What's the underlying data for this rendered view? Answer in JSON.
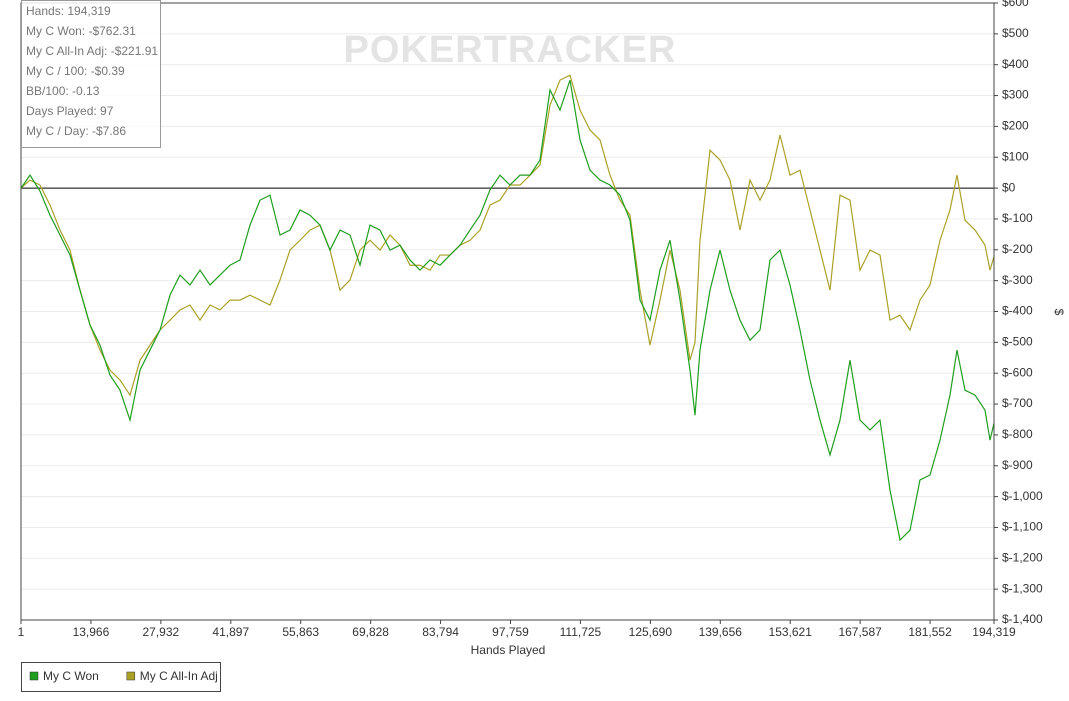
{
  "chart_data": {
    "type": "line",
    "watermark": "POKERTRACKER",
    "stats": [
      "Hands: 194,319",
      "My C Won: -$762.31",
      "My C All-In Adj: -$221.91",
      "My C / 100: -$0.39",
      "BB/100: -0.13",
      "Days Played: 97",
      "My C / Day: -$7.86"
    ],
    "xlabel": "Hands Played",
    "ylabel": "$",
    "legend": "bottom-left",
    "grid": true,
    "xlim": [
      1,
      194319
    ],
    "xticks": [
      1,
      {
        "value": 13966,
        "label": "13,966"
      },
      {
        "value": 27932,
        "label": "27,932"
      },
      {
        "value": 41897,
        "label": "41,897"
      },
      {
        "value": 55863,
        "label": "55,863"
      },
      {
        "value": 69828,
        "label": "69,828"
      },
      {
        "value": 83794,
        "label": "83,794"
      },
      {
        "value": 97759,
        "label": "97,759"
      },
      {
        "value": 111725,
        "label": "111,725"
      },
      {
        "value": 125690,
        "label": "125,690"
      },
      {
        "value": 139656,
        "label": "139,656"
      },
      {
        "value": 153621,
        "label": "153,621"
      },
      {
        "value": 167587,
        "label": "167,587"
      },
      {
        "value": 181552,
        "label": "181,552"
      },
      {
        "value": 194319,
        "label": "194,319"
      }
    ],
    "ylim": [
      -1400,
      600
    ],
    "yticks": [
      {
        "value": 600,
        "label": "$600"
      },
      {
        "value": 500,
        "label": "$500"
      },
      {
        "value": 400,
        "label": "$400"
      },
      {
        "value": 300,
        "label": "$300"
      },
      {
        "value": 200,
        "label": "$200"
      },
      {
        "value": 100,
        "label": "$100"
      },
      {
        "value": 0,
        "label": "$0"
      },
      {
        "value": -100,
        "label": "$-100"
      },
      {
        "value": -200,
        "label": "$-200"
      },
      {
        "value": -300,
        "label": "$-300"
      },
      {
        "value": -400,
        "label": "$-400"
      },
      {
        "value": -500,
        "label": "$-500"
      },
      {
        "value": -600,
        "label": "$-600"
      },
      {
        "value": -700,
        "label": "$-700"
      },
      {
        "value": -800,
        "label": "$-800"
      },
      {
        "value": -900,
        "label": "$-900"
      },
      {
        "value": -1000,
        "label": "$-1,000"
      },
      {
        "value": -1100,
        "label": "$-1,100"
      },
      {
        "value": -1200,
        "label": "$-1,200"
      },
      {
        "value": -1300,
        "label": "$-1,300"
      },
      {
        "value": -1400,
        "label": "$-1,400"
      }
    ],
    "x": [
      1,
      1798,
      3796,
      5793,
      7790,
      9787,
      11784,
      13781,
      15778,
      17775,
      19772,
      21770,
      23767,
      25764,
      27761,
      29758,
      31755,
      33752,
      35749,
      37746,
      39743,
      41741,
      43738,
      45735,
      47732,
      49729,
      51726,
      53723,
      55720,
      57717,
      59714,
      61712,
      63709,
      65706,
      67703,
      69700,
      71697,
      73694,
      75691,
      77688,
      79685,
      81683,
      83680,
      85677,
      87674,
      89671,
      91668,
      93665,
      95662,
      97659,
      99656,
      101654,
      103651,
      105648,
      107645,
      109642,
      111639,
      113636,
      115633,
      117630,
      119627,
      121625,
      123622,
      125619,
      127616,
      129613,
      131610,
      133607,
      134606,
      135604,
      137601,
      139598,
      141596,
      143593,
      145590,
      147587,
      149584,
      151581,
      153578,
      155575,
      157572,
      159569,
      161567,
      163564,
      165561,
      167558,
      169555,
      171552,
      173549,
      175546,
      177543,
      179540,
      181538,
      183535,
      185532,
      186930,
      188528,
      190525,
      192522,
      193521,
      194319
    ],
    "series": [
      {
        "name": "My C Won",
        "color": "#1f9e1f",
        "values": [
          0,
          42,
          -10,
          -88,
          -152,
          -217,
          -331,
          -444,
          -509,
          -606,
          -655,
          -752,
          -590,
          -525,
          -460,
          -347,
          -282,
          -314,
          -266,
          -314,
          -282,
          -250,
          -233,
          -120,
          -39,
          -23,
          -152,
          -136,
          -71,
          -88,
          -120,
          -201,
          -136,
          -152,
          -250,
          -120,
          -136,
          -201,
          -185,
          -233,
          -266,
          -233,
          -250,
          -217,
          -185,
          -136,
          -88,
          -6,
          42,
          10,
          42,
          42,
          91,
          318,
          253,
          350,
          156,
          58,
          26,
          10,
          -23,
          -104,
          -363,
          -428,
          -266,
          -169,
          -363,
          -590,
          -736,
          -525,
          -331,
          -201,
          -331,
          -428,
          -493,
          -460,
          -233,
          -201,
          -314,
          -460,
          -622,
          -752,
          -865,
          -752,
          -558,
          -752,
          -784,
          -752,
          -979,
          -1141,
          -1109,
          -946,
          -930,
          -817,
          -671,
          -525,
          -655,
          -671,
          -720,
          -817,
          -762
        ]
      },
      {
        "name": "My C All-In Adj",
        "color": "#aaa127",
        "values": [
          0,
          26,
          10,
          -55,
          -136,
          -201,
          -331,
          -444,
          -525,
          -590,
          -622,
          -671,
          -558,
          -509,
          -460,
          -428,
          -395,
          -379,
          -428,
          -379,
          -395,
          -363,
          -363,
          -347,
          -363,
          -379,
          -298,
          -201,
          -169,
          -136,
          -120,
          -201,
          -331,
          -298,
          -201,
          -169,
          -201,
          -152,
          -185,
          -250,
          -250,
          -266,
          -217,
          -217,
          -185,
          -169,
          -136,
          -55,
          -39,
          10,
          10,
          42,
          75,
          269,
          350,
          366,
          253,
          188,
          156,
          42,
          -39,
          -88,
          -331,
          -509,
          -363,
          -201,
          -331,
          -558,
          -500,
          -169,
          123,
          91,
          26,
          -136,
          26,
          -39,
          26,
          172,
          42,
          58,
          -71,
          -201,
          -331,
          -23,
          -39,
          -266,
          -201,
          -217,
          -428,
          -412,
          -460,
          -363,
          -314,
          -169,
          -71,
          42,
          -104,
          -136,
          -185,
          -266,
          -222
        ]
      }
    ]
  }
}
